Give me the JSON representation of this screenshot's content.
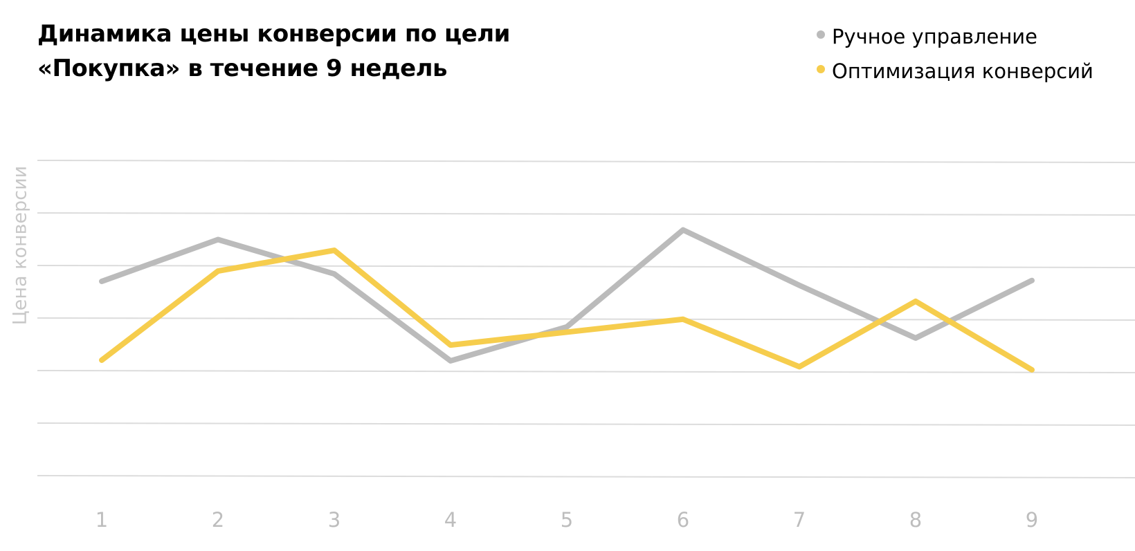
{
  "chart_data": {
    "type": "line",
    "title_lines": [
      "Динамика цены конверсии по цели",
      "«Покупка» в течение 9 недель"
    ],
    "xlabel": "",
    "ylabel": "Цена конверсии",
    "categories": [
      "1",
      "2",
      "3",
      "4",
      "5",
      "6",
      "7",
      "8",
      "9"
    ],
    "ylim": [
      0,
      6
    ],
    "grid": true,
    "legend_position": "top-right",
    "series": [
      {
        "name": "Ручное управление",
        "color": "#bbbbbb",
        "values": [
          3.7,
          4.5,
          3.85,
          2.2,
          2.85,
          4.7,
          3.65,
          2.65,
          3.75
        ]
      },
      {
        "name": "Оптимизация конверсий",
        "color": "#f6cd4d",
        "values": [
          2.2,
          3.9,
          4.3,
          2.5,
          2.75,
          3.0,
          2.1,
          3.35,
          2.05
        ]
      }
    ]
  }
}
